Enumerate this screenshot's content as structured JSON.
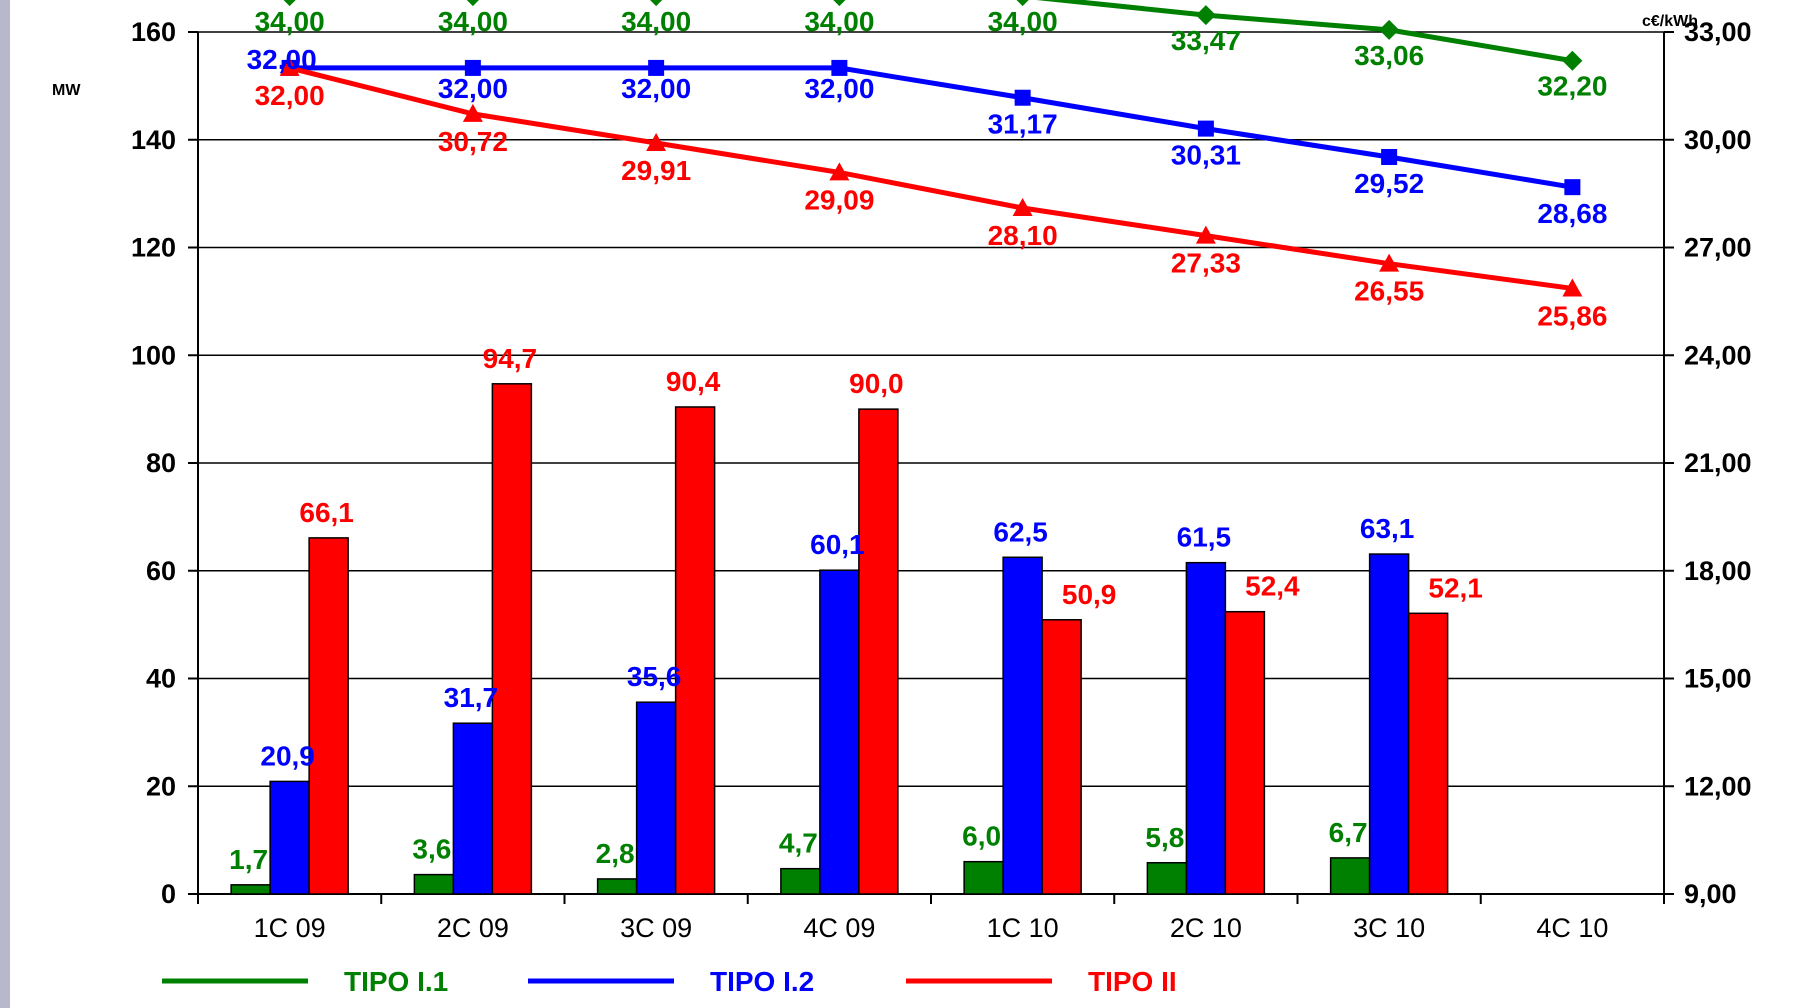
{
  "chart_data": {
    "type": "bar+line",
    "categories": [
      "1C 09",
      "2C 09",
      "3C 09",
      "4C 09",
      "1C 10",
      "2C 10",
      "3C 10",
      "4C 10"
    ],
    "left_axis": {
      "label": "MW",
      "ylim": [
        0,
        160
      ],
      "ticks": [
        "0",
        "20",
        "40",
        "60",
        "80",
        "100",
        "120",
        "140",
        "160"
      ]
    },
    "right_axis": {
      "label": "c€/kWh",
      "ylim": [
        9,
        33
      ],
      "ticks": [
        "9,00",
        "12,00",
        "15,00",
        "18,00",
        "21,00",
        "24,00",
        "27,00",
        "30,00",
        "33,00"
      ]
    },
    "grid": "horizontal",
    "legend": {
      "placement": "bottom"
    },
    "bars": [
      {
        "name": "TIPO I.1",
        "color": "#008000",
        "values": [
          1.7,
          3.6,
          2.8,
          4.7,
          6.0,
          5.8,
          6.7,
          null
        ],
        "labels": [
          "1,7",
          "3,6",
          "2,8",
          "4,7",
          "6,0",
          "5,8",
          "6,7",
          ""
        ]
      },
      {
        "name": "TIPO I.2",
        "color": "#0000ff",
        "values": [
          20.9,
          31.7,
          35.6,
          60.1,
          62.5,
          61.5,
          63.1,
          null
        ],
        "labels": [
          "20,9",
          "31,7",
          "35,6",
          "60,1",
          "62,5",
          "61,5",
          "63,1",
          ""
        ]
      },
      {
        "name": "TIPO II",
        "color": "#ff0000",
        "values": [
          66.1,
          94.7,
          90.4,
          90.0,
          50.9,
          52.4,
          52.1,
          null
        ],
        "labels": [
          "66,1",
          "94,7",
          "90,4",
          "90,0",
          "50,9",
          "52,4",
          "52,1",
          ""
        ]
      }
    ],
    "lines": [
      {
        "name": "TIPO I.1",
        "color": "#008000",
        "marker": "diamond",
        "values": [
          34.0,
          34.0,
          34.0,
          34.0,
          34.0,
          33.47,
          33.06,
          32.2
        ],
        "labels": [
          "34,00",
          "34,00",
          "34,00",
          "34,00",
          "34,00",
          "33,47",
          "33,06",
          "32,20"
        ]
      },
      {
        "name": "TIPO I.2",
        "color": "#0000ff",
        "marker": "square",
        "values": [
          32.0,
          32.0,
          32.0,
          32.0,
          31.17,
          30.31,
          29.52,
          28.68
        ],
        "labels": [
          "32,00",
          "32,00",
          "32,00",
          "32,00",
          "31,17",
          "30,31",
          "29,52",
          "28,68"
        ]
      },
      {
        "name": "TIPO II",
        "color": "#ff0000",
        "marker": "triangle",
        "values": [
          32.0,
          30.72,
          29.91,
          29.09,
          28.1,
          27.33,
          26.55,
          25.86
        ],
        "labels": [
          "32,00",
          "30,72",
          "29,91",
          "29,09",
          "28,10",
          "27,33",
          "26,55",
          "25,86"
        ]
      }
    ]
  }
}
